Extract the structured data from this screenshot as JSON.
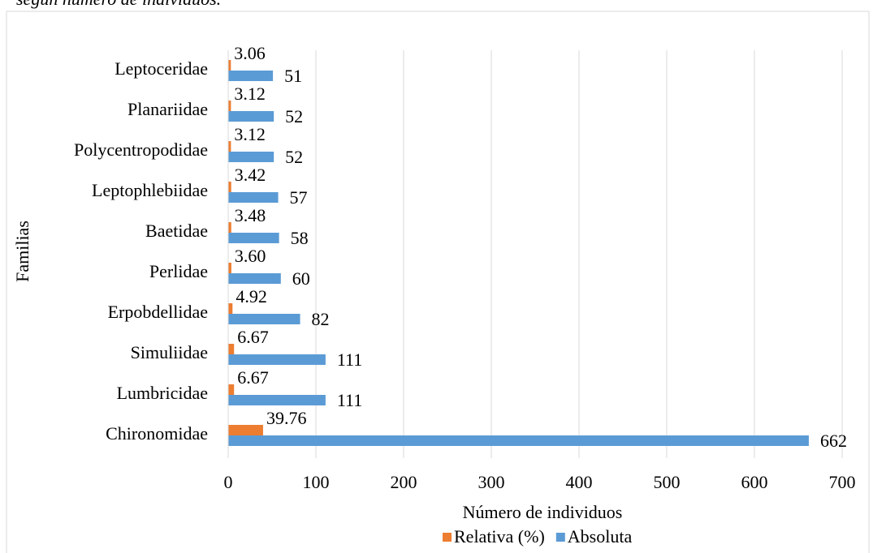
{
  "chart_data": {
    "type": "barh",
    "subtitle": "según número de individuos.",
    "xlabel": "Número de individuos",
    "ylabel": "Familias",
    "categories": [
      "Chironomidae",
      "Lumbricidae",
      "Simuliidae",
      "Erpobdellidae",
      "Perlidae",
      "Baetidae",
      "Leptophlebiidae",
      "Polycentropodidae",
      "Planariidae",
      "Leptoceridae"
    ],
    "series": [
      {
        "name": "Relativa (%)",
        "color": "#ed7d31",
        "values": [
          39.76,
          6.67,
          6.67,
          4.92,
          3.6,
          3.48,
          3.42,
          3.12,
          3.12,
          3.06
        ],
        "value_labels": [
          "39.76",
          "6.67",
          "6.67",
          "4.92",
          "3.60",
          "3.48",
          "3.42",
          "3.12",
          "3.12",
          "3.06"
        ]
      },
      {
        "name": "Absoluta",
        "color": "#5b9bd5",
        "values": [
          662,
          111,
          111,
          82,
          60,
          58,
          57,
          52,
          52,
          51
        ]
      }
    ],
    "xlim": [
      0,
      700
    ],
    "xticks": [
      0,
      100,
      200,
      300,
      400,
      500,
      600,
      700
    ],
    "grid": true,
    "legend": "bottom"
  }
}
